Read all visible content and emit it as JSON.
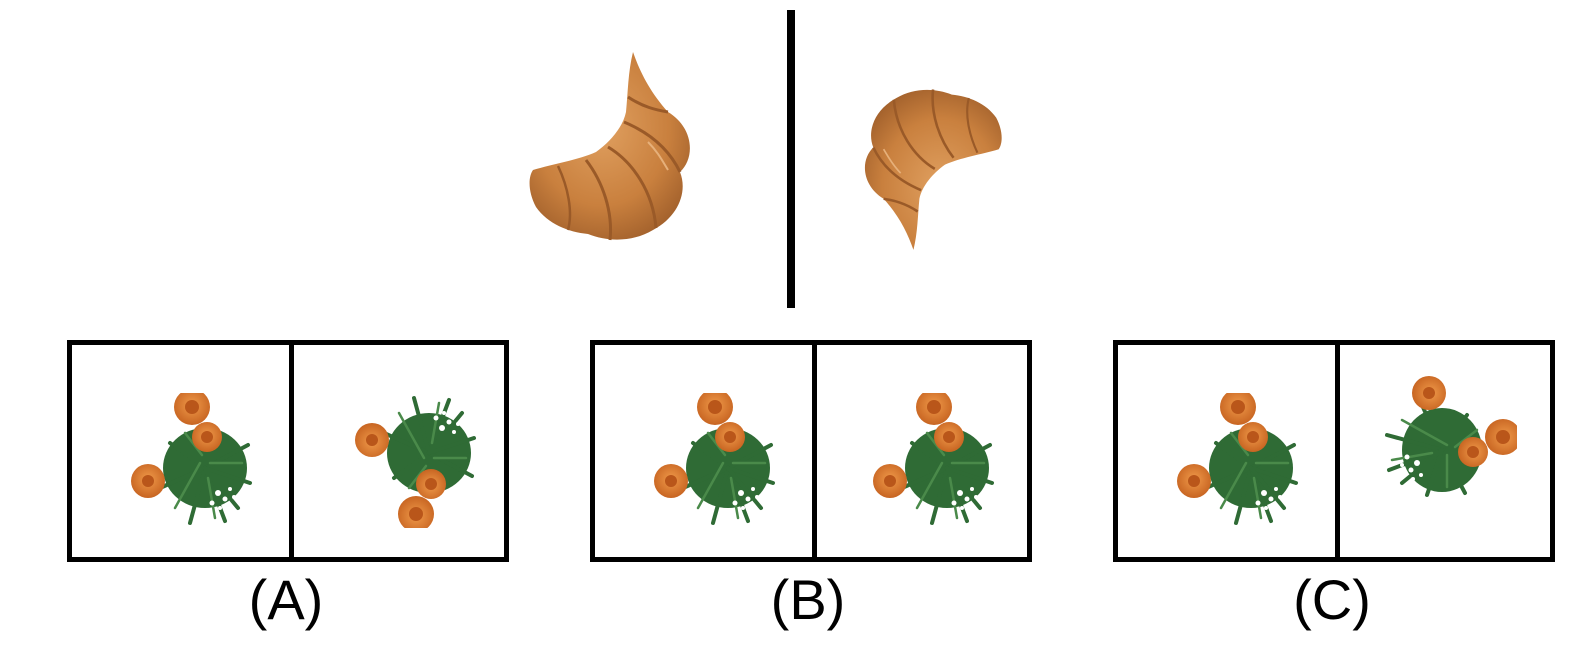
{
  "reference": {
    "left_object": "croissant",
    "right_object": "croissant-mirrored"
  },
  "options": [
    {
      "label": "(A)",
      "left": "flower-plant",
      "right": "flower-plant-mirrored"
    },
    {
      "label": "(B)",
      "left": "flower-plant",
      "right": "flower-plant"
    },
    {
      "label": "(C)",
      "left": "flower-plant",
      "right": "flower-plant-rotated"
    }
  ],
  "colors": {
    "croissant": "#c9803e",
    "croissant_dark": "#9a5a28",
    "petal": "#d9762b",
    "leaf": "#2f6b35",
    "leaf_light": "#4a8a4a",
    "line": "#000000"
  }
}
